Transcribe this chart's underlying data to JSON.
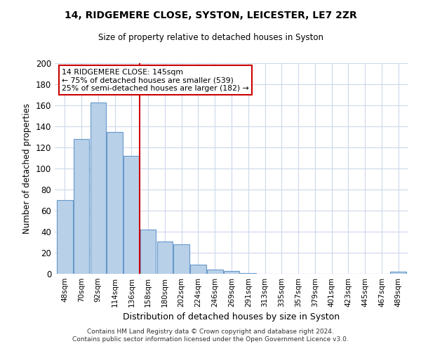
{
  "title": "14, RIDGEMERE CLOSE, SYSTON, LEICESTER, LE7 2ZR",
  "subtitle": "Size of property relative to detached houses in Syston",
  "xlabel": "Distribution of detached houses by size in Syston",
  "ylabel": "Number of detached properties",
  "bar_labels": [
    "48sqm",
    "70sqm",
    "92sqm",
    "114sqm",
    "136sqm",
    "158sqm",
    "180sqm",
    "202sqm",
    "224sqm",
    "246sqm",
    "269sqm",
    "291sqm",
    "313sqm",
    "335sqm",
    "357sqm",
    "379sqm",
    "401sqm",
    "423sqm",
    "445sqm",
    "467sqm",
    "489sqm"
  ],
  "bar_values": [
    70,
    128,
    163,
    135,
    112,
    42,
    31,
    28,
    9,
    4,
    3,
    1,
    0,
    0,
    0,
    0,
    0,
    0,
    0,
    0,
    2
  ],
  "bar_color": "#b8d0e8",
  "bar_edge_color": "#6699cc",
  "vline_x": 4.5,
  "vline_color": "#cc0000",
  "annotation_title": "14 RIDGEMERE CLOSE: 145sqm",
  "annotation_line1": "← 75% of detached houses are smaller (539)",
  "annotation_line2": "25% of semi-detached houses are larger (182) →",
  "annotation_box_color": "#ffffff",
  "annotation_box_edge": "#cc0000",
  "ylim": [
    0,
    200
  ],
  "yticks": [
    0,
    20,
    40,
    60,
    80,
    100,
    120,
    140,
    160,
    180,
    200
  ],
  "footnote1": "Contains HM Land Registry data © Crown copyright and database right 2024.",
  "footnote2": "Contains public sector information licensed under the Open Government Licence v3.0.",
  "background_color": "#ffffff",
  "grid_color": "#ccd8ec"
}
